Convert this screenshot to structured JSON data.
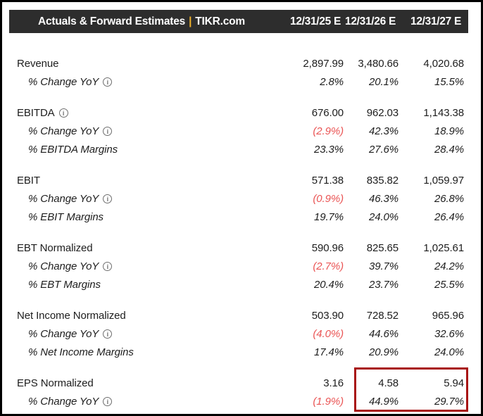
{
  "header": {
    "title_left": "Actuals & Forward Estimates",
    "title_separator": "|",
    "title_right": "TIKR.com",
    "columns": [
      "12/31/25 E",
      "12/31/26 E",
      "12/31/27 E"
    ]
  },
  "icons": {
    "info_glyph": "i"
  },
  "colors": {
    "header_bg": "#2d2d2d",
    "title_separator": "#edb02a",
    "negative_text": "#ea5555",
    "highlight_border": "#a81414"
  },
  "sections": [
    {
      "rows": [
        {
          "label": "Revenue",
          "values": [
            "2,897.99",
            "3,480.66",
            "4,020.68"
          ]
        },
        {
          "label": "% Change YoY",
          "values": [
            "2.8%",
            "20.1%",
            "15.5%"
          ]
        }
      ]
    },
    {
      "rows": [
        {
          "label": "EBITDA",
          "values": [
            "676.00",
            "962.03",
            "1,143.38"
          ]
        },
        {
          "label": "% Change YoY",
          "values": [
            "(2.9%)",
            "42.3%",
            "18.9%"
          ]
        },
        {
          "label": "% EBITDA Margins",
          "values": [
            "23.3%",
            "27.6%",
            "28.4%"
          ]
        }
      ]
    },
    {
      "rows": [
        {
          "label": "EBIT",
          "values": [
            "571.38",
            "835.82",
            "1,059.97"
          ]
        },
        {
          "label": "% Change YoY",
          "values": [
            "(0.9%)",
            "46.3%",
            "26.8%"
          ]
        },
        {
          "label": "% EBIT Margins",
          "values": [
            "19.7%",
            "24.0%",
            "26.4%"
          ]
        }
      ]
    },
    {
      "rows": [
        {
          "label": "EBT Normalized",
          "values": [
            "590.96",
            "825.65",
            "1,025.61"
          ]
        },
        {
          "label": "% Change YoY",
          "values": [
            "(2.7%)",
            "39.7%",
            "24.2%"
          ]
        },
        {
          "label": "% EBT Margins",
          "values": [
            "20.4%",
            "23.7%",
            "25.5%"
          ]
        }
      ]
    },
    {
      "rows": [
        {
          "label": "Net Income Normalized",
          "values": [
            "503.90",
            "728.52",
            "965.96"
          ]
        },
        {
          "label": "% Change YoY",
          "values": [
            "(4.0%)",
            "44.6%",
            "32.6%"
          ]
        },
        {
          "label": "% Net Income Margins",
          "values": [
            "17.4%",
            "20.9%",
            "24.0%"
          ]
        }
      ]
    },
    {
      "rows": [
        {
          "label": "EPS Normalized",
          "values": [
            "3.16",
            "4.58",
            "5.94"
          ]
        },
        {
          "label": "% Change YoY",
          "values": [
            "(1.9%)",
            "44.9%",
            "29.7%"
          ]
        }
      ]
    }
  ],
  "chart_data": {
    "type": "table",
    "title": "Actuals & Forward Estimates | TIKR.com",
    "columns": [
      "12/31/25 E",
      "12/31/26 E",
      "12/31/27 E"
    ],
    "rows": [
      {
        "label": "Revenue",
        "values": [
          2897.99,
          3480.66,
          4020.68
        ]
      },
      {
        "label": "% Change YoY",
        "values": [
          "2.8%",
          "20.1%",
          "15.5%"
        ]
      },
      {
        "label": "EBITDA",
        "values": [
          676.0,
          962.03,
          1143.38
        ]
      },
      {
        "label": "% Change YoY",
        "values": [
          "(2.9%)",
          "42.3%",
          "18.9%"
        ]
      },
      {
        "label": "% EBITDA Margins",
        "values": [
          "23.3%",
          "27.6%",
          "28.4%"
        ]
      },
      {
        "label": "EBIT",
        "values": [
          571.38,
          835.82,
          1059.97
        ]
      },
      {
        "label": "% Change YoY",
        "values": [
          "(0.9%)",
          "46.3%",
          "26.8%"
        ]
      },
      {
        "label": "% EBIT Margins",
        "values": [
          "19.7%",
          "24.0%",
          "26.4%"
        ]
      },
      {
        "label": "EBT Normalized",
        "values": [
          590.96,
          825.65,
          1025.61
        ]
      },
      {
        "label": "% Change YoY",
        "values": [
          "(2.7%)",
          "39.7%",
          "24.2%"
        ]
      },
      {
        "label": "% EBT Margins",
        "values": [
          "20.4%",
          "23.7%",
          "25.5%"
        ]
      },
      {
        "label": "Net Income Normalized",
        "values": [
          503.9,
          728.52,
          965.96
        ]
      },
      {
        "label": "% Change YoY",
        "values": [
          "(4.0%)",
          "44.6%",
          "32.6%"
        ]
      },
      {
        "label": "% Net Income Margins",
        "values": [
          "17.4%",
          "20.9%",
          "24.0%"
        ]
      },
      {
        "label": "EPS Normalized",
        "values": [
          3.16,
          4.58,
          5.94
        ]
      },
      {
        "label": "% Change YoY",
        "values": [
          "(1.9%)",
          "44.9%",
          "29.7%"
        ]
      }
    ],
    "highlighted_cells": "EPS Normalized and % Change YoY for 12/31/26 E and 12/31/27 E",
    "negative_values_in_parentheses": true
  }
}
